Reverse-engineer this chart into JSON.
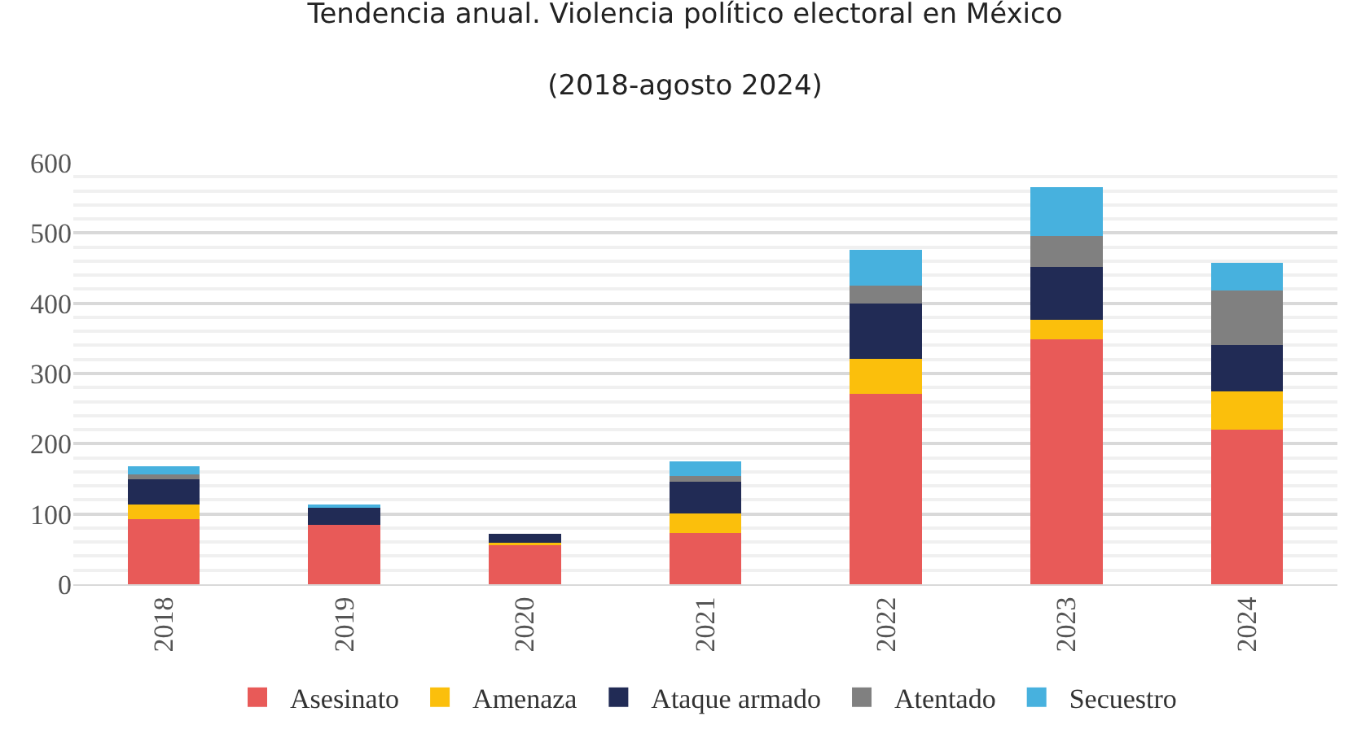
{
  "chart_data": {
    "type": "bar",
    "title": "Tendencia anual. Violencia político electoral en México",
    "subtitle": "(2018-agosto 2024)",
    "categories": [
      "2018",
      "2019",
      "2020",
      "2021",
      "2022",
      "2023",
      "2024"
    ],
    "stacked": true,
    "series": [
      {
        "name": "Asesinato",
        "color": "#e85a58",
        "values": [
          93,
          84,
          56,
          73,
          271,
          349,
          220
        ]
      },
      {
        "name": "Amenaza",
        "color": "#fbbf0c",
        "values": [
          20,
          0,
          3,
          28,
          50,
          27,
          55
        ]
      },
      {
        "name": "Ataque armado",
        "color": "#212b55",
        "values": [
          37,
          25,
          13,
          45,
          79,
          76,
          65
        ]
      },
      {
        "name": "Atentado",
        "color": "#808080",
        "values": [
          6,
          0,
          0,
          8,
          25,
          44,
          78
        ]
      },
      {
        "name": "Secuestro",
        "color": "#47b1de",
        "values": [
          12,
          4,
          0,
          21,
          51,
          69,
          39
        ]
      }
    ],
    "ylim": [
      0,
      600
    ],
    "yticks": [
      0,
      100,
      200,
      300,
      400,
      500,
      600
    ],
    "grid": "y",
    "legend": "bottom"
  }
}
